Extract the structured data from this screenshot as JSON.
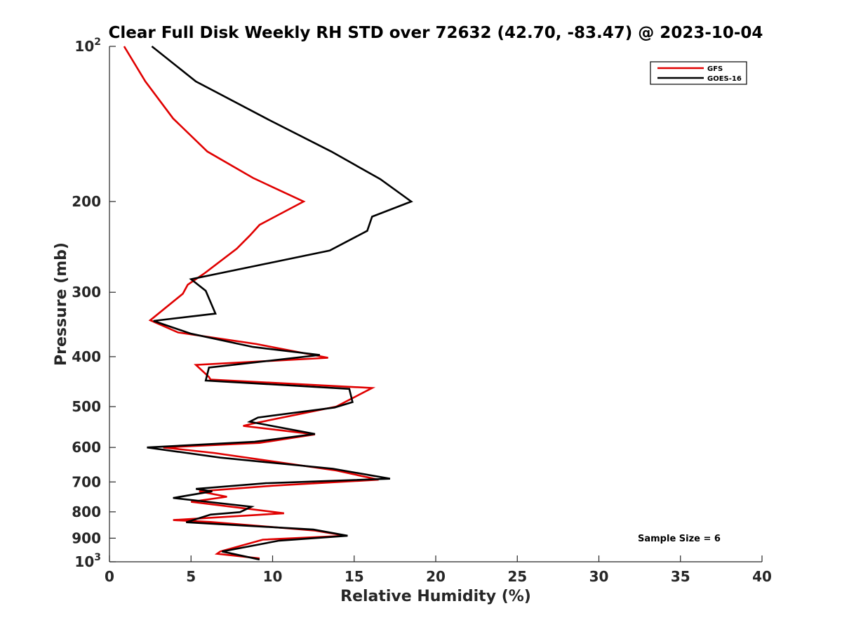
{
  "chart_data": {
    "type": "line",
    "title": "Clear Full Disk Weekly RH STD over 72632 (42.70, -83.47) @ 2023-10-04",
    "xlabel": "Relative Humidity (%)",
    "ylabel": "Pressure (mb)",
    "xlim": [
      0,
      40
    ],
    "ylim": [
      100,
      1000
    ],
    "yscale": "log",
    "y_reversed": true,
    "x_ticks": [
      "0",
      "5",
      "10",
      "15",
      "20",
      "25",
      "30",
      "35",
      "40"
    ],
    "y_ticks": [
      {
        "value": 100,
        "label": "10",
        "sup": "2"
      },
      {
        "value": 200,
        "label": "200",
        "sup": ""
      },
      {
        "value": 300,
        "label": "300",
        "sup": ""
      },
      {
        "value": 400,
        "label": "400",
        "sup": ""
      },
      {
        "value": 500,
        "label": "500",
        "sup": ""
      },
      {
        "value": 600,
        "label": "600",
        "sup": ""
      },
      {
        "value": 700,
        "label": "700",
        "sup": ""
      },
      {
        "value": 800,
        "label": "800",
        "sup": ""
      },
      {
        "value": 900,
        "label": "900",
        "sup": ""
      },
      {
        "value": 1000,
        "label": "10",
        "sup": "3"
      }
    ],
    "grid": false,
    "legend_position": "top-right",
    "annotation": "Sample Size = 6",
    "series": [
      {
        "name": "GFS",
        "color": "#e00000",
        "x": [
          0.9,
          2.2,
          3.9,
          6.0,
          8.8,
          11.9,
          9.2,
          8.6,
          7.8,
          5.8,
          4.8,
          4.5,
          2.5,
          4.2,
          9.0,
          13.4,
          5.3,
          6.1,
          6.2,
          16.1,
          13.9,
          8.7,
          8.2,
          12.6,
          9.2,
          3.3,
          6.4,
          13.9,
          16.5,
          10.0,
          5.5,
          7.2,
          5.0,
          10.7,
          3.9,
          6.2,
          12.6,
          14.5,
          9.4,
          6.8,
          6.6,
          9.2
        ],
        "y": [
          100,
          117,
          138,
          160,
          180,
          200,
          222,
          233,
          247,
          276,
          290,
          302,
          340,
          359,
          378,
          402,
          415,
          438,
          443,
          460,
          500,
          540,
          545,
          566,
          588,
          600,
          615,
          665,
          693,
          712,
          730,
          748,
          765,
          805,
          830,
          837,
          870,
          890,
          906,
          955,
          965,
          985
        ]
      },
      {
        "name": "GOES-16",
        "color": "#000000",
        "x": [
          2.6,
          5.3,
          9.8,
          13.6,
          16.6,
          18.5,
          16.1,
          15.8,
          13.5,
          5.0,
          5.9,
          6.5,
          2.7,
          5.0,
          8.8,
          12.9,
          6.1,
          5.9,
          14.7,
          14.9,
          13.8,
          9.1,
          8.6,
          12.6,
          8.9,
          2.3,
          6.8,
          13.7,
          17.2,
          9.6,
          5.3,
          6.3,
          3.9,
          8.7,
          8.0,
          6.2,
          4.7,
          12.5,
          14.6,
          10.4,
          7.3,
          6.9,
          9.2
        ],
        "y": [
          100,
          117,
          139,
          160,
          181,
          200,
          214,
          228,
          249,
          283,
          298,
          330,
          341,
          361,
          383,
          397,
          420,
          445,
          462,
          490,
          502,
          525,
          535,
          565,
          585,
          600,
          628,
          660,
          690,
          704,
          722,
          730,
          752,
          782,
          801,
          810,
          838,
          866,
          890,
          910,
          950,
          955,
          990
        ]
      }
    ]
  }
}
